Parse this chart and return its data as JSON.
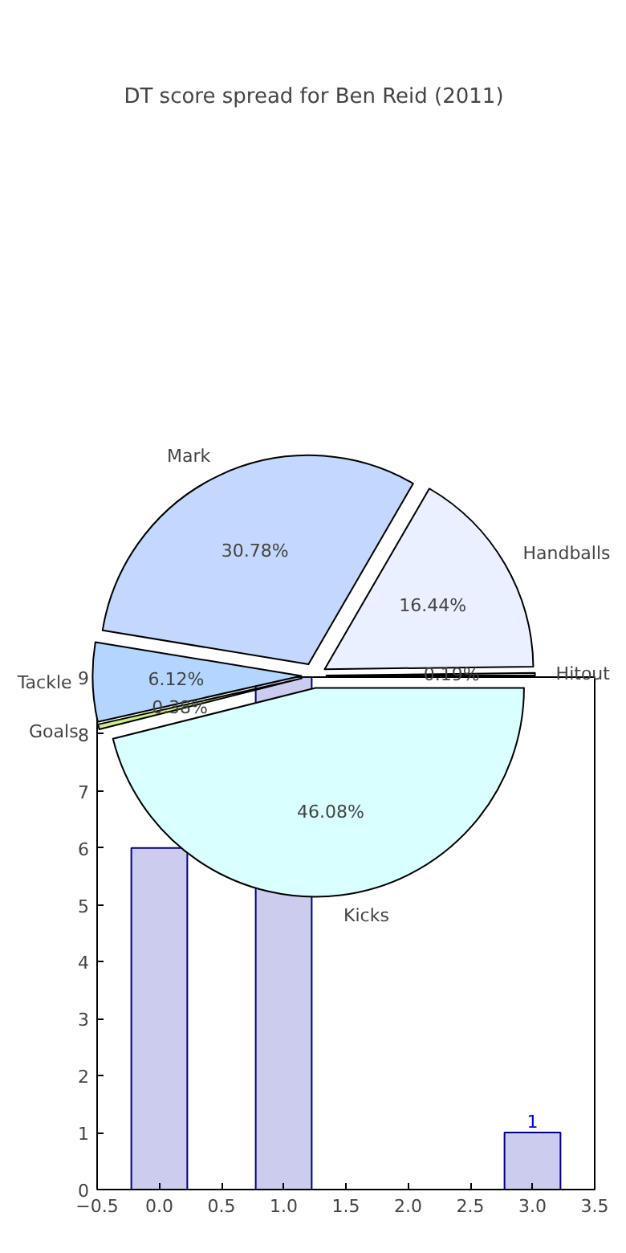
{
  "chart_data": [
    {
      "type": "pie",
      "title": "DT score spread for Ben Reid (2011)",
      "categories": [
        "Hitout",
        "Handballs",
        "Mark",
        "Tackle",
        "Goals",
        "Kicks"
      ],
      "values": [
        0.19,
        16.44,
        30.78,
        6.12,
        0.38,
        46.08
      ],
      "value_labels": [
        "0.19%",
        "16.44%",
        "30.78%",
        "6.12%",
        "0.38%",
        "46.08%"
      ],
      "colors": [
        "#f0f0f0",
        "#eaf0ff",
        "#c4d8ff",
        "#b3d5ff",
        "#ccee88",
        "#d9ffff"
      ]
    },
    {
      "type": "bar",
      "x": [
        0,
        1,
        2,
        3
      ],
      "values": [
        6,
        9,
        null,
        1
      ],
      "color": "#ccccee",
      "value_labels": [
        null,
        null,
        null,
        "1"
      ],
      "xlim": [
        -0.5,
        3.5
      ],
      "xticks": [
        {
          "value": -0.5,
          "label": "−0.5"
        },
        {
          "value": 0,
          "label": "0.0"
        },
        {
          "value": 0.5,
          "label": "0.5"
        },
        {
          "value": 1,
          "label": "1.0"
        },
        {
          "value": 1.5,
          "label": "1.5"
        },
        {
          "value": 2,
          "label": "2.0"
        },
        {
          "value": 2.5,
          "label": "2.5"
        },
        {
          "value": 3,
          "label": "3.0"
        },
        {
          "value": 3.5,
          "label": "3.5"
        }
      ],
      "ylim": [
        0,
        9
      ],
      "yticks": [
        0,
        1,
        2,
        3,
        4,
        5,
        6,
        7,
        8,
        9
      ],
      "grid": false
    }
  ]
}
